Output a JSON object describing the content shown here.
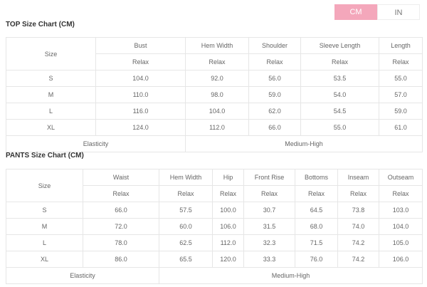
{
  "unit_toggle": {
    "options": [
      "CM",
      "IN"
    ],
    "selected": "CM",
    "accent": "#f4a7bb"
  },
  "top": {
    "title": "TOP Size Chart (CM)",
    "size_header": "Size",
    "columns": [
      "Bust",
      "Hem Width",
      "Shoulder",
      "Sleeve Length",
      "Length"
    ],
    "subheader": "Relax",
    "rows": [
      {
        "size": "S",
        "values": [
          "104.0",
          "92.0",
          "56.0",
          "53.5",
          "55.0"
        ]
      },
      {
        "size": "M",
        "values": [
          "110.0",
          "98.0",
          "59.0",
          "54.0",
          "57.0"
        ]
      },
      {
        "size": "L",
        "values": [
          "116.0",
          "104.0",
          "62.0",
          "54.5",
          "59.0"
        ]
      },
      {
        "size": "XL",
        "values": [
          "124.0",
          "112.0",
          "66.0",
          "55.0",
          "61.0"
        ]
      }
    ],
    "elasticity_label": "Elasticity",
    "elasticity_value": "Medium-High"
  },
  "pants": {
    "title": "PANTS Size Chart (CM)",
    "size_header": "Size",
    "columns": [
      "Waist",
      "Hem Width",
      "Hip",
      "Front Rise",
      "Bottoms",
      "Inseam",
      "Outseam"
    ],
    "subheader": "Relax",
    "rows": [
      {
        "size": "S",
        "values": [
          "66.0",
          "57.5",
          "100.0",
          "30.7",
          "64.5",
          "73.8",
          "103.0"
        ]
      },
      {
        "size": "M",
        "values": [
          "72.0",
          "60.0",
          "106.0",
          "31.5",
          "68.0",
          "74.0",
          "104.0"
        ]
      },
      {
        "size": "L",
        "values": [
          "78.0",
          "62.5",
          "112.0",
          "32.3",
          "71.5",
          "74.2",
          "105.0"
        ]
      },
      {
        "size": "XL",
        "values": [
          "86.0",
          "65.5",
          "120.0",
          "33.3",
          "76.0",
          "74.2",
          "106.0"
        ]
      }
    ],
    "elasticity_label": "Elasticity",
    "elasticity_value": "Medium-High"
  }
}
